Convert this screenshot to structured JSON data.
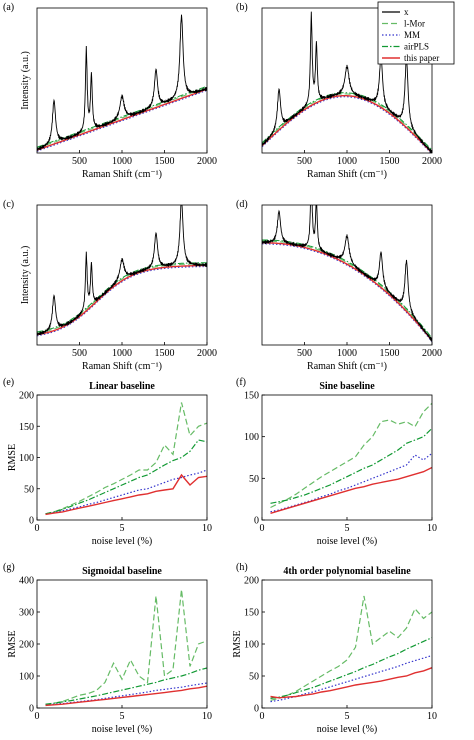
{
  "figure": {
    "legend": {
      "placement": "top-right of panel (b)",
      "entries": [
        {
          "label": "x",
          "color": "#000000",
          "dash": "solid"
        },
        {
          "label": "l-Mor",
          "color": "#66bb66",
          "dash": "dashed"
        },
        {
          "label": "MM",
          "color": "#3333cc",
          "dash": "dotted"
        },
        {
          "label": "airPLS",
          "color": "#119933",
          "dash": "dashdot"
        },
        {
          "label": "this paper",
          "color": "#e03030",
          "dash": "solid"
        }
      ]
    }
  },
  "chart_data": [
    {
      "panel": "(a)",
      "type": "line",
      "xlabel": "Raman Shift (cm⁻¹)",
      "ylabel": "Intensity (a.u.)",
      "xlim": [
        0,
        2000
      ],
      "ylim": [
        0,
        1
      ],
      "xticks": [
        500,
        1000,
        1500,
        2000
      ],
      "baseline": "linear",
      "peaks": [
        [
          200,
          0.3
        ],
        [
          580,
          0.57
        ],
        [
          640,
          0.38
        ],
        [
          1000,
          0.16
        ],
        [
          1400,
          0.26
        ],
        [
          1700,
          0.57
        ]
      ],
      "series": [
        {
          "name": "x",
          "role": "spectrum"
        },
        {
          "name": "this paper",
          "role": "baseline"
        }
      ]
    },
    {
      "panel": "(b)",
      "type": "line",
      "xlabel": "Raman Shift (cm⁻¹)",
      "ylabel": "",
      "xlim": [
        0,
        2000
      ],
      "ylim": [
        0,
        1
      ],
      "xticks": [
        500,
        1000,
        1500,
        2000
      ],
      "baseline": "sine",
      "peaks": [
        [
          200,
          0.28
        ],
        [
          580,
          0.62
        ],
        [
          640,
          0.4
        ],
        [
          1000,
          0.2
        ],
        [
          1400,
          0.35
        ],
        [
          1700,
          0.47
        ]
      ],
      "series": [
        {
          "name": "x",
          "role": "spectrum"
        },
        {
          "name": "this paper",
          "role": "baseline"
        }
      ]
    },
    {
      "panel": "(c)",
      "type": "line",
      "xlabel": "Raman Shift (cm⁻¹)",
      "ylabel": "Intensity (a.u.)",
      "xlim": [
        0,
        2000
      ],
      "ylim": [
        0,
        1
      ],
      "xticks": [
        500,
        1000,
        1500,
        2000
      ],
      "baseline": "sigmoidal",
      "peaks": [
        [
          200,
          0.25
        ],
        [
          580,
          0.4
        ],
        [
          640,
          0.3
        ],
        [
          1000,
          0.15
        ],
        [
          1400,
          0.25
        ],
        [
          1700,
          0.47
        ]
      ],
      "series": [
        {
          "name": "x",
          "role": "spectrum"
        },
        {
          "name": "this paper",
          "role": "baseline"
        }
      ]
    },
    {
      "panel": "(d)",
      "type": "line",
      "xlabel": "Raman Shift (cm⁻¹)",
      "ylabel": "",
      "xlim": [
        0,
        2000
      ],
      "ylim": [
        0,
        1
      ],
      "xticks": [
        500,
        1000,
        1500,
        2000
      ],
      "baseline": "4th order polynomial",
      "peaks": [
        [
          200,
          0.23
        ],
        [
          580,
          0.52
        ],
        [
          640,
          0.35
        ],
        [
          1000,
          0.2
        ],
        [
          1400,
          0.25
        ],
        [
          1700,
          0.36
        ]
      ],
      "series": [
        {
          "name": "x",
          "role": "spectrum"
        },
        {
          "name": "this paper",
          "role": "baseline"
        }
      ]
    },
    {
      "panel": "(e)",
      "type": "line",
      "title": "Linear baseline",
      "xlabel": "noise level (%)",
      "ylabel": "RMSE",
      "xlim": [
        0,
        10
      ],
      "ylim": [
        0,
        200
      ],
      "xticks": [
        0,
        5,
        10
      ],
      "yticks": [
        0,
        50,
        100,
        150,
        200
      ],
      "x": [
        0.5,
        1,
        1.5,
        2,
        2.5,
        3,
        3.5,
        4,
        4.5,
        5,
        5.5,
        6,
        6.5,
        7,
        7.5,
        8,
        8.5,
        9,
        9.5,
        10
      ],
      "series": [
        {
          "name": "l-Mor",
          "values": [
            10,
            13,
            18,
            24,
            30,
            37,
            44,
            52,
            58,
            65,
            72,
            80,
            80,
            92,
            120,
            105,
            188,
            135,
            150,
            155
          ]
        },
        {
          "name": "MM",
          "values": [
            10,
            12,
            15,
            18,
            21,
            25,
            28,
            32,
            36,
            40,
            44,
            48,
            50,
            55,
            60,
            65,
            68,
            72,
            75,
            80
          ]
        },
        {
          "name": "airPLS",
          "values": [
            10,
            13,
            17,
            22,
            27,
            32,
            38,
            44,
            50,
            56,
            62,
            68,
            72,
            80,
            88,
            95,
            100,
            110,
            128,
            125
          ]
        },
        {
          "name": "this paper",
          "values": [
            9,
            11,
            13,
            16,
            19,
            22,
            25,
            28,
            31,
            34,
            37,
            40,
            42,
            46,
            48,
            50,
            72,
            56,
            68,
            70
          ]
        }
      ]
    },
    {
      "panel": "(f)",
      "type": "line",
      "title": "Sine baseline",
      "xlabel": "noise level (%)",
      "ylabel": "",
      "xlim": [
        0,
        10
      ],
      "ylim": [
        0,
        150
      ],
      "xticks": [
        0,
        5,
        10
      ],
      "yticks": [
        0,
        50,
        100,
        150
      ],
      "x": [
        0.5,
        1,
        1.5,
        2,
        2.5,
        3,
        3.5,
        4,
        4.5,
        5,
        5.5,
        6,
        6.5,
        7,
        7.5,
        8,
        8.5,
        9,
        9.5,
        10
      ],
      "series": [
        {
          "name": "l-Mor",
          "values": [
            15,
            20,
            25,
            31,
            38,
            45,
            52,
            58,
            64,
            70,
            76,
            90,
            100,
            118,
            120,
            115,
            118,
            112,
            130,
            140
          ]
        },
        {
          "name": "MM",
          "values": [
            10,
            12,
            15,
            18,
            21,
            24,
            28,
            31,
            35,
            38,
            42,
            46,
            50,
            54,
            58,
            62,
            66,
            78,
            72,
            80
          ]
        },
        {
          "name": "airPLS",
          "values": [
            20,
            22,
            24,
            27,
            30,
            34,
            38,
            42,
            47,
            52,
            57,
            62,
            66,
            72,
            78,
            84,
            92,
            96,
            100,
            110
          ]
        },
        {
          "name": "this paper",
          "values": [
            8,
            11,
            14,
            17,
            20,
            23,
            26,
            29,
            32,
            35,
            38,
            40,
            43,
            45,
            47,
            49,
            52,
            55,
            58,
            63
          ]
        }
      ]
    },
    {
      "panel": "(g)",
      "type": "line",
      "title": "Sigmoidal baseline",
      "xlabel": "noise level (%)",
      "ylabel": "RMSE",
      "xlim": [
        0,
        10
      ],
      "ylim": [
        0,
        400
      ],
      "xticks": [
        0,
        5,
        10
      ],
      "yticks": [
        0,
        100,
        200,
        300,
        400
      ],
      "x": [
        0.5,
        1,
        1.5,
        2,
        2.5,
        3,
        3.5,
        4,
        4.5,
        5,
        5.5,
        6,
        6.5,
        7,
        7.5,
        8,
        8.5,
        9,
        9.5,
        10
      ],
      "series": [
        {
          "name": "l-Mor",
          "values": [
            10,
            15,
            20,
            30,
            40,
            45,
            55,
            80,
            140,
            90,
            150,
            100,
            80,
            350,
            100,
            120,
            370,
            130,
            200,
            210
          ]
        },
        {
          "name": "MM",
          "values": [
            10,
            12,
            14,
            17,
            20,
            23,
            26,
            30,
            34,
            38,
            42,
            46,
            50,
            55,
            58,
            62,
            65,
            70,
            74,
            78
          ]
        },
        {
          "name": "airPLS",
          "values": [
            12,
            15,
            19,
            23,
            28,
            33,
            38,
            44,
            50,
            56,
            62,
            68,
            74,
            80,
            88,
            94,
            100,
            108,
            118,
            125
          ]
        },
        {
          "name": "this paper",
          "values": [
            8,
            10,
            12,
            15,
            18,
            21,
            24,
            27,
            30,
            33,
            36,
            39,
            42,
            45,
            48,
            52,
            55,
            60,
            63,
            68
          ]
        }
      ]
    },
    {
      "panel": "(h)",
      "type": "line",
      "title": "4th order polynomial baseline",
      "xlabel": "noise level (%)",
      "ylabel": "RMSE",
      "xlim": [
        0,
        10
      ],
      "ylim": [
        0,
        200
      ],
      "xticks": [
        0,
        5,
        10
      ],
      "yticks": [
        0,
        50,
        100,
        150,
        200
      ],
      "x": [
        0.5,
        1,
        1.5,
        2,
        2.5,
        3,
        3.5,
        4,
        4.5,
        5,
        5.5,
        6,
        6.5,
        7,
        7.5,
        8,
        8.5,
        9,
        9.5,
        10
      ],
      "series": [
        {
          "name": "l-Mor",
          "values": [
            12,
            15,
            20,
            26,
            34,
            42,
            50,
            58,
            65,
            75,
            95,
            175,
            100,
            110,
            120,
            110,
            125,
            155,
            140,
            150
          ]
        },
        {
          "name": "MM",
          "values": [
            10,
            12,
            15,
            18,
            22,
            25,
            29,
            33,
            37,
            41,
            45,
            49,
            53,
            57,
            61,
            65,
            70,
            74,
            78,
            82
          ]
        },
        {
          "name": "airPLS",
          "values": [
            15,
            17,
            20,
            24,
            28,
            32,
            37,
            42,
            47,
            52,
            57,
            63,
            68,
            74,
            80,
            85,
            92,
            98,
            104,
            110
          ]
        },
        {
          "name": "this paper",
          "values": [
            18,
            16,
            17,
            18,
            20,
            22,
            25,
            27,
            30,
            33,
            36,
            38,
            40,
            42,
            45,
            48,
            50,
            55,
            58,
            63
          ]
        }
      ]
    }
  ]
}
